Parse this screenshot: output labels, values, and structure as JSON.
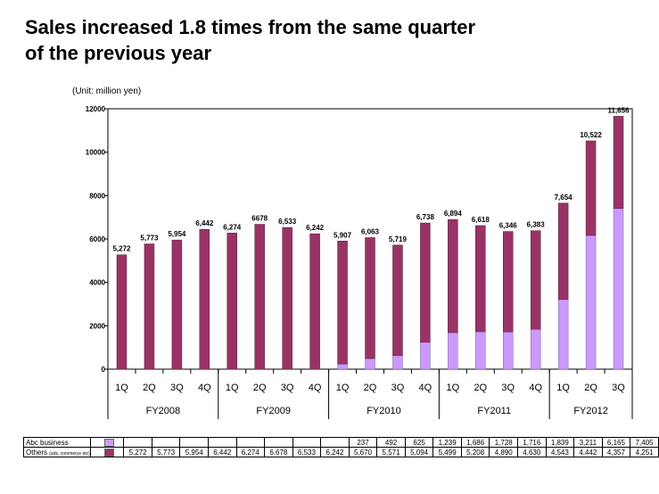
{
  "title_line1": "Sales increased 1.8 times from the same quarter",
  "title_line2": "of the previous year",
  "unit": "(Unit: million yen)",
  "colors": {
    "abc": "#cc99ff",
    "others": "#993366",
    "text": "#000000"
  },
  "chart_data": {
    "type": "bar",
    "stacked": true,
    "ylim": [
      0,
      12000
    ],
    "yticks": [
      0,
      2000,
      4000,
      6000,
      8000,
      10000,
      12000
    ],
    "categories": [
      "1Q",
      "2Q",
      "3Q",
      "4Q",
      "1Q",
      "2Q",
      "3Q",
      "4Q",
      "1Q",
      "2Q",
      "3Q",
      "4Q",
      "1Q",
      "2Q",
      "3Q",
      "4Q",
      "1Q",
      "2Q",
      "3Q"
    ],
    "groups": [
      {
        "label": "FY2008",
        "count": 4
      },
      {
        "label": "FY2009",
        "count": 4
      },
      {
        "label": "FY2010",
        "count": 4
      },
      {
        "label": "FY2011",
        "count": 4
      },
      {
        "label": "FY2012",
        "count": 3
      }
    ],
    "series": [
      {
        "name": "Abc business",
        "color": "#cc99ff",
        "values": [
          0,
          0,
          0,
          0,
          0,
          0,
          0,
          0,
          237,
          492,
          625,
          1239,
          1686,
          1728,
          1716,
          1839,
          3211,
          6165,
          7405
        ]
      },
      {
        "name": "Others",
        "name_note": "(ads, commerce etc)",
        "color": "#993366",
        "values": [
          5272,
          5773,
          5954,
          6442,
          6274,
          6678,
          6533,
          6242,
          5670,
          5571,
          5094,
          5499,
          5208,
          4890,
          4630,
          4543,
          4442,
          4357,
          4251
        ]
      }
    ],
    "total_labels": [
      "5,272",
      "5,773",
      "5,954",
      "6,442",
      "6,274",
      "6678",
      "6,533",
      "6,242",
      "5,907",
      "6,063",
      "5,719",
      "6,738",
      "6,894",
      "6,618",
      "6,346",
      "6,383",
      "7,654",
      "10,522",
      "11,656"
    ],
    "table": {
      "abc": [
        "",
        "",
        "",
        "",
        "",
        "",
        "",
        "",
        "237",
        "492",
        "625",
        "1,239",
        "1,686",
        "1,728",
        "1,716",
        "1,839",
        "3,211",
        "6,165",
        "7,405"
      ],
      "others": [
        "5,272",
        "5,773",
        "5,954",
        "6,442",
        "6,274",
        "6,678",
        "6,533",
        "6,242",
        "5,670",
        "5,571",
        "5,094",
        "5,499",
        "5,208",
        "4,890",
        "4,630",
        "4,543",
        "4,442",
        "4,357",
        "4,251"
      ]
    }
  }
}
